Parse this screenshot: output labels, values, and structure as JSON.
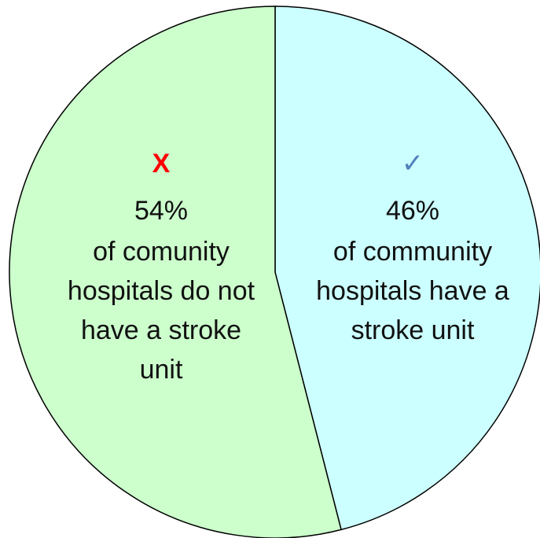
{
  "chart_data": {
    "type": "pie",
    "values": [
      46,
      54
    ],
    "value_labels": [
      "46%",
      "54%"
    ],
    "colors": [
      "#ccffff",
      "#ccffcc"
    ],
    "icons": [
      "✓",
      "X"
    ],
    "icon_colors": [
      "#4f81bd",
      "#ff0000"
    ],
    "descriptions": [
      [
        "of community",
        "hospitals have a",
        "stroke unit"
      ],
      [
        "of comunity",
        "hospitals do not",
        "have a stroke",
        "unit"
      ]
    ]
  }
}
